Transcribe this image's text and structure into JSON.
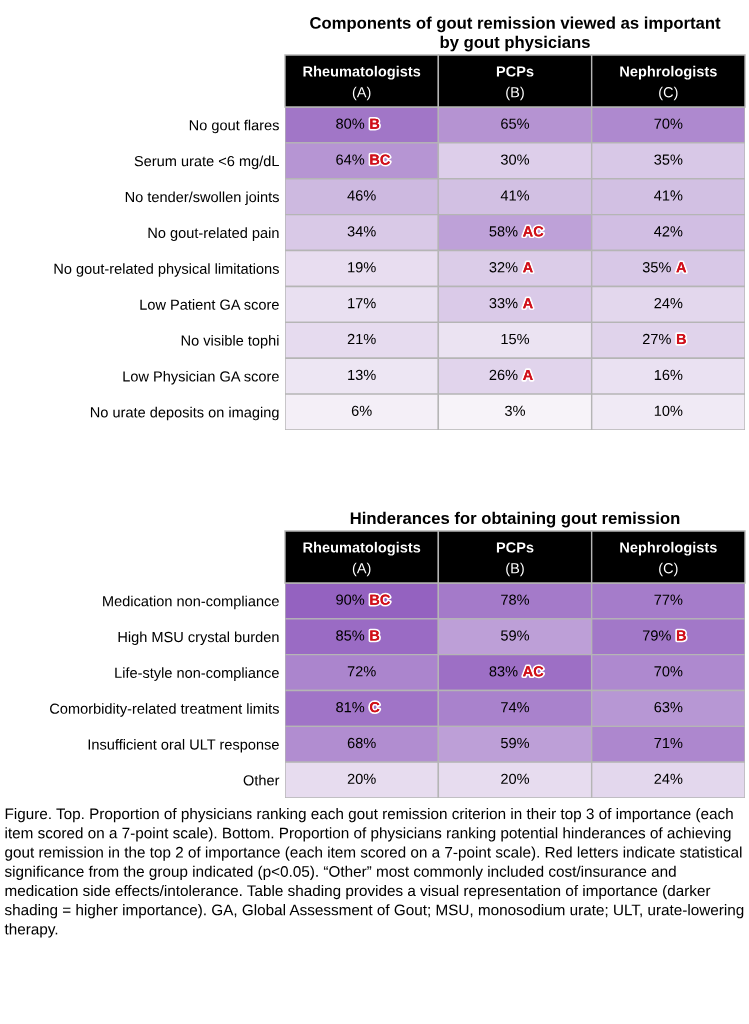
{
  "chart_data": [
    {
      "type": "heatmap",
      "title": "Components of gout remission viewed as important\nby gout physicians",
      "categories": [
        "Rheumatologists\n(A)",
        "PCPs\n(B)",
        "Nephrologists\n(C)"
      ],
      "y_categories": [
        "No gout flares",
        "Serum urate <6 mg/dL",
        "No tender/swollen joints",
        "No gout-related pain",
        "No gout-related physical limitations",
        "Low Patient GA score",
        "No visible tophi",
        "Low Physician GA score",
        "No urate deposits on imaging"
      ],
      "cells": [
        [
          80,
          65,
          70
        ],
        [
          64,
          30,
          35
        ],
        [
          46,
          41,
          41
        ],
        [
          34,
          58,
          42
        ],
        [
          19,
          32,
          35
        ],
        [
          17,
          33,
          24
        ],
        [
          21,
          15,
          27
        ],
        [
          13,
          26,
          16
        ],
        [
          6,
          3,
          10
        ]
      ],
      "cell_labels": [
        [
          "80% B",
          "65%",
          "70%"
        ],
        [
          "64% BC",
          "30%",
          "35%"
        ],
        [
          "46%",
          "41%",
          "41%"
        ],
        [
          "34%",
          "58% AC",
          "42%"
        ],
        [
          "19%",
          "32% A",
          "35% A"
        ],
        [
          "17%",
          "33% A",
          "24%"
        ],
        [
          "21%",
          "15%",
          "27% B"
        ],
        [
          "13%",
          "26% A",
          "16%"
        ],
        [
          "6%",
          "3%",
          "10%"
        ]
      ]
    },
    {
      "type": "heatmap",
      "title": "Hinderances for obtaining gout remission",
      "categories": [
        "Rheumatologists\n(A)",
        "PCPs\n(B)",
        "Nephrologists\n(C)"
      ],
      "y_categories": [
        "Medication non-compliance",
        "High MSU crystal burden",
        "Life-style non-compliance",
        "Comorbidity-related treatment limits",
        "Insufficient oral ULT response",
        "Other"
      ],
      "cells": [
        [
          90,
          78,
          77
        ],
        [
          85,
          59,
          79
        ],
        [
          72,
          83,
          70
        ],
        [
          81,
          74,
          63
        ],
        [
          68,
          59,
          71
        ],
        [
          20,
          20,
          24
        ]
      ],
      "cell_labels": [
        [
          "90% BC",
          "78%",
          "77%"
        ],
        [
          "85% B",
          "59%",
          "79% B"
        ],
        [
          "72%",
          "83% AC",
          "70%"
        ],
        [
          "81% C",
          "74%",
          "63%"
        ],
        [
          "68%",
          "59%",
          "71%"
        ],
        [
          "20%",
          "20%",
          "24%"
        ]
      ],
      "annotations": [
        "Figure. Top. Proportion of physicians ranking each gout remission criterion in their top 3 of importance (each item scored on a 7-point scale). Bottom. Proportion of physicians ranking potential hinderances of achieving gout remission in the top 2 of importance (each item scored on a 7-point scale). Red letters indicate statistical significance from the group indicated (p<0.05). “Other” most commonly included cost/insurance and medication side effects/intolerance. Table shading provides a visual representation of importance (darker shading = higher importance). GA, Global Assessment of Gout; MSU, monosodium urate; ULT, urate-lowering therapy."
      ]
    }
  ]
}
